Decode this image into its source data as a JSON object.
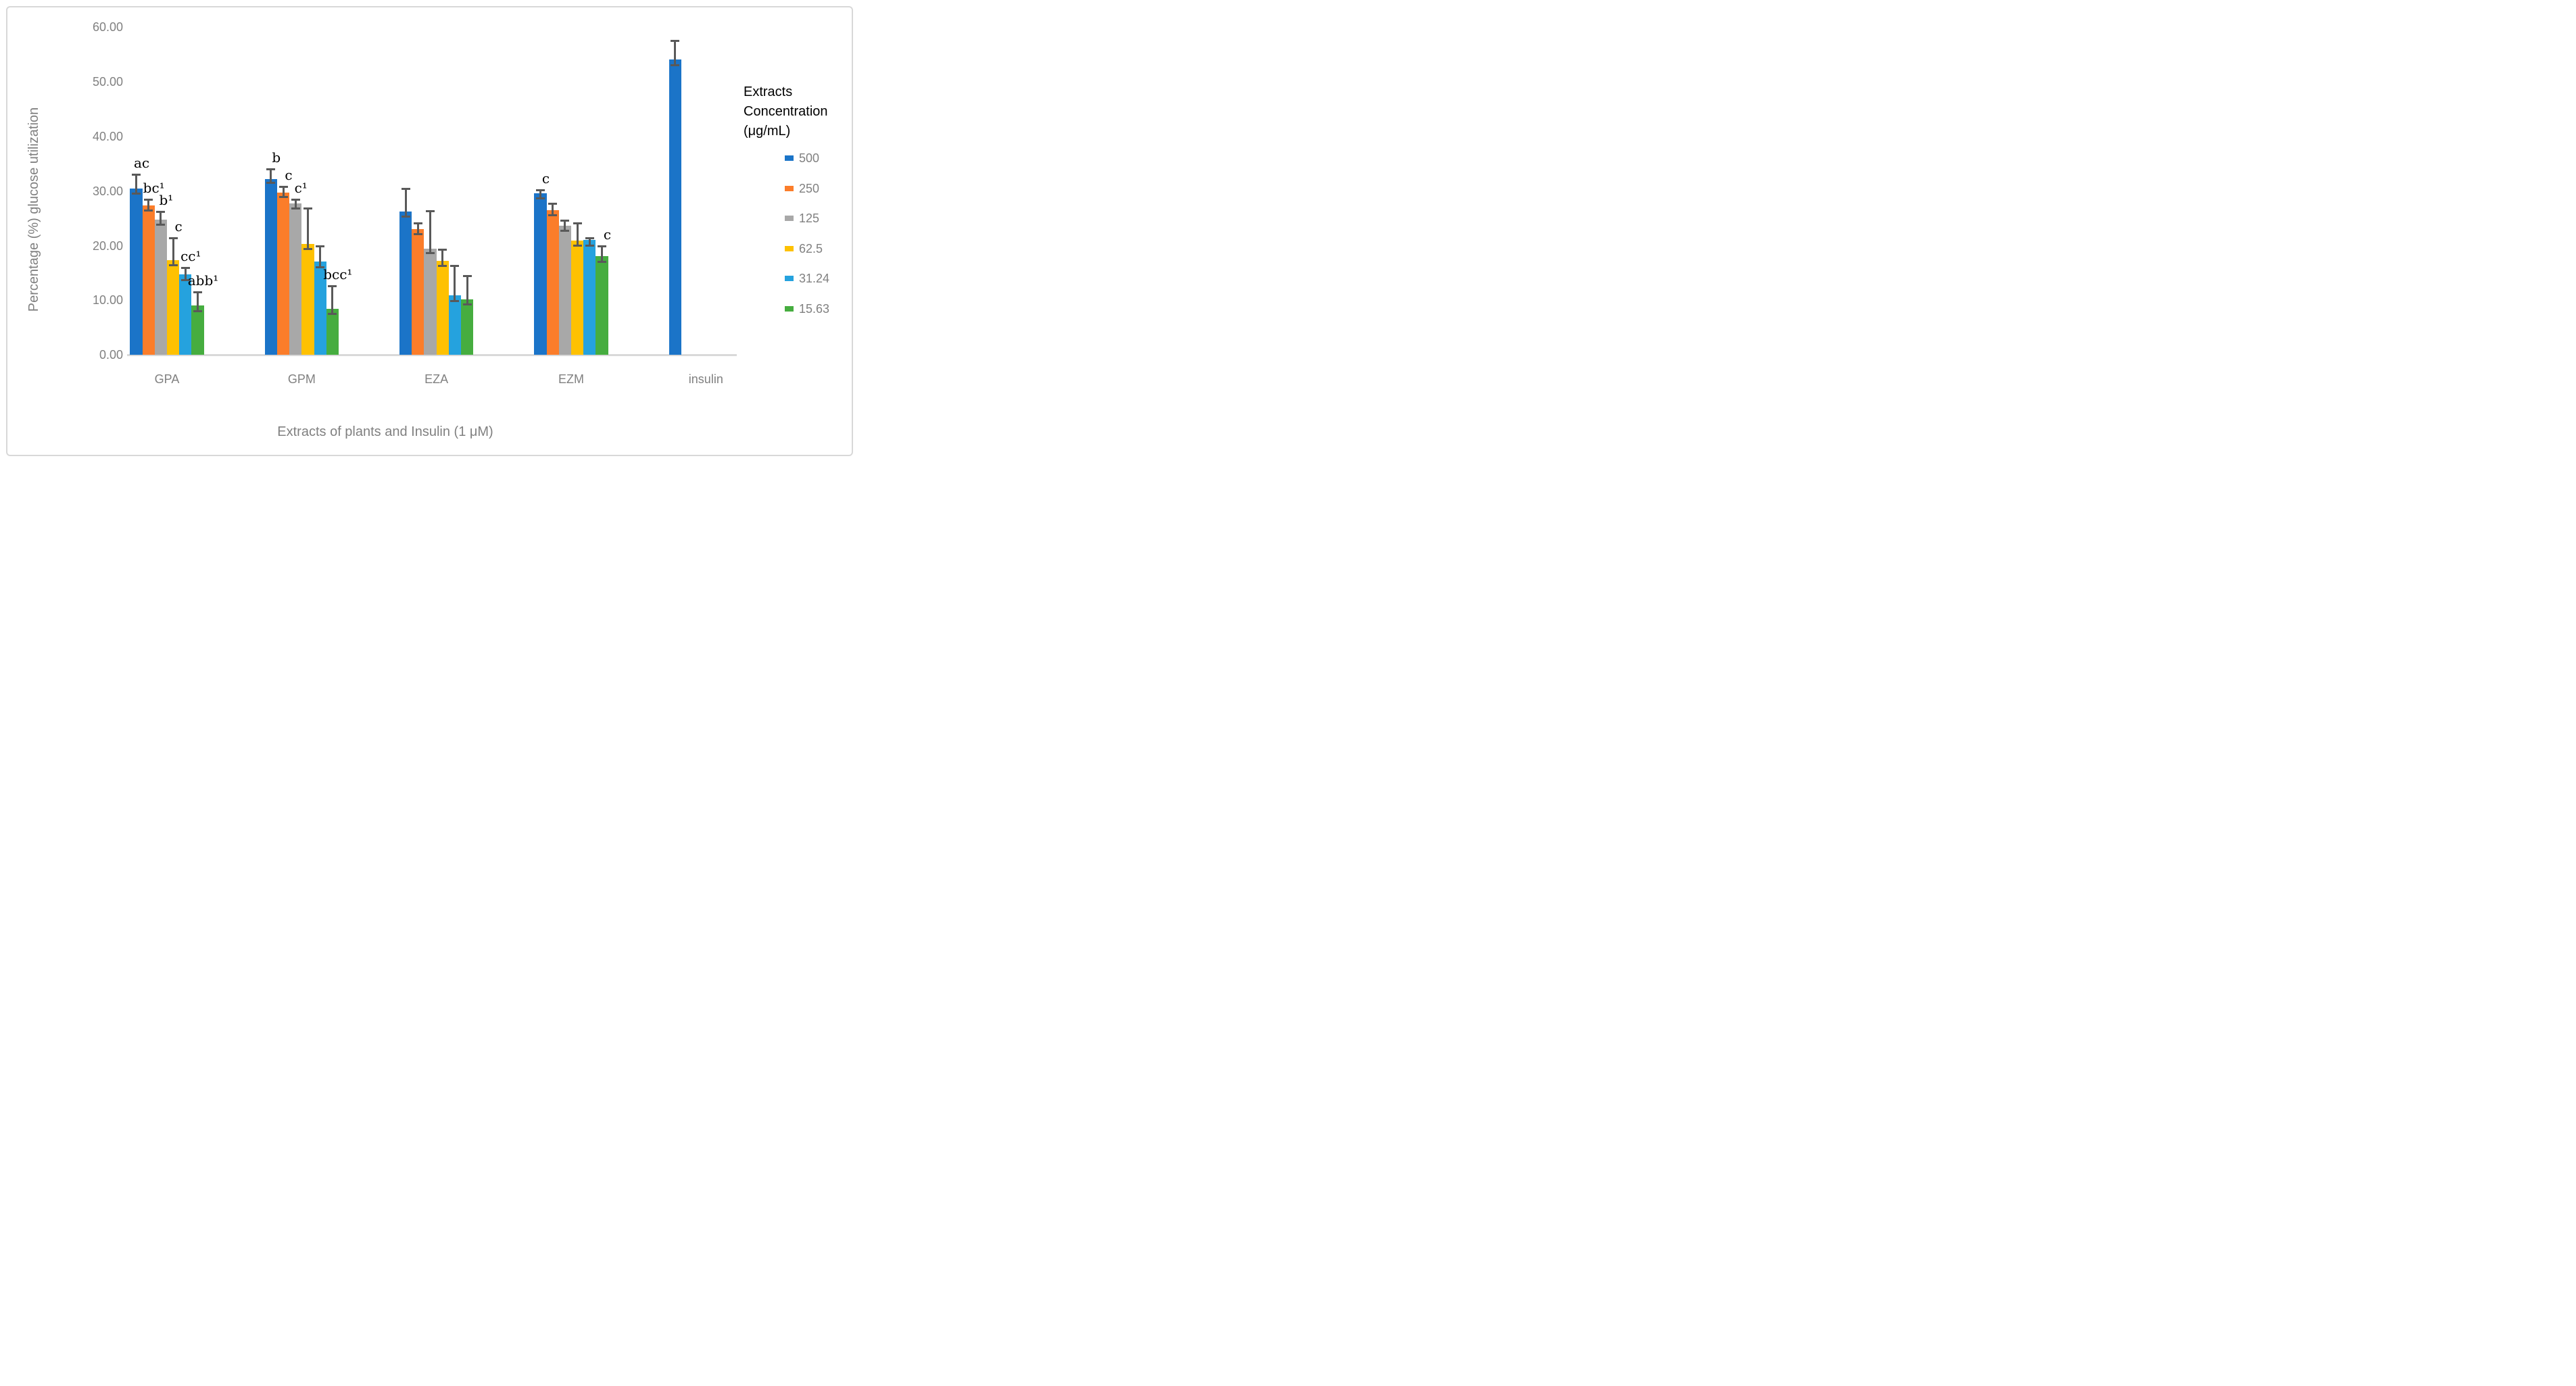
{
  "figure": {
    "background": "#FFFFFF",
    "border_color": "#D8D8D8"
  },
  "y_axis": {
    "title": "Percentage (%) glucose utilization",
    "tick_labels": [
      "0.00",
      "10.00",
      "20.00",
      "30.00",
      "40.00",
      "50.00",
      "60.00"
    ],
    "min": 0,
    "max": 60,
    "step": 10
  },
  "x_axis": {
    "title": "Extracts of plants and Insulin (1 μM)",
    "categories": [
      "GPA",
      "GPM",
      "EZA",
      "EZM",
      "insulin"
    ]
  },
  "legend": {
    "title": "Extracts\nConcentration\n(μg/mL)",
    "entries": [
      "500",
      "250",
      "125",
      "62.5",
      "31.24",
      "15.63"
    ]
  },
  "colors": {
    "error_bar": "#595959",
    "axis_line": "#D9D9D9",
    "text": "#808080",
    "annotation": "#000000"
  },
  "chart_data": {
    "type": "bar",
    "title": "",
    "xlabel": "Extracts of plants and Insulin (1 μM)",
    "ylabel": "Percentage (%) glucose utilization",
    "ylim": [
      0,
      60
    ],
    "grid": false,
    "legend_position": "right",
    "legend_title": "Extracts Concentration (μg/mL)",
    "categories": [
      "GPA",
      "GPM",
      "EZA",
      "EZM",
      "insulin"
    ],
    "series": [
      {
        "name": "500",
        "color": "#1B74C8",
        "values": [
          30.4,
          32.2,
          26.2,
          29.6,
          54.1
        ],
        "err_plus": [
          2.7,
          1.8,
          4.2,
          0.6,
          3.4
        ],
        "err_minus": [
          0.9,
          0.8,
          0.9,
          1.0,
          1.2
        ]
      },
      {
        "name": "250",
        "color": "#FB7D2A",
        "values": [
          27.4,
          29.7,
          23.0,
          26.5,
          null
        ],
        "err_plus": [
          1.1,
          1.1,
          1.1,
          1.2,
          null
        ],
        "err_minus": [
          1.0,
          0.9,
          1.0,
          1.0,
          null
        ]
      },
      {
        "name": "125",
        "color": "#A8A8A8",
        "values": [
          24.8,
          27.7,
          19.5,
          23.6,
          null
        ],
        "err_plus": [
          1.5,
          0.8,
          6.9,
          1.0,
          null
        ],
        "err_minus": [
          1.0,
          1.0,
          0.9,
          1.0,
          null
        ]
      },
      {
        "name": "62.5",
        "color": "#FEC101",
        "values": [
          17.3,
          20.3,
          17.2,
          20.9,
          null
        ],
        "err_plus": [
          4.1,
          6.6,
          2.1,
          3.2,
          null
        ],
        "err_minus": [
          0.9,
          1.0,
          1.0,
          1.0,
          null
        ]
      },
      {
        "name": "31.24",
        "color": "#25A2DE",
        "values": [
          14.8,
          17.1,
          10.9,
          21.1,
          null
        ],
        "err_plus": [
          1.2,
          2.8,
          5.5,
          0.3,
          null
        ],
        "err_minus": [
          1.2,
          1.1,
          1.1,
          1.1,
          null
        ]
      },
      {
        "name": "15.63",
        "color": "#46AD3F",
        "values": [
          9.0,
          8.5,
          10.2,
          18.1,
          null
        ],
        "err_plus": [
          2.5,
          4.1,
          4.3,
          1.8,
          null
        ],
        "err_minus": [
          1.0,
          1.1,
          1.0,
          1.1,
          null
        ]
      }
    ],
    "annotations": [
      {
        "category": "GPA",
        "series": "500",
        "text": "ac"
      },
      {
        "category": "GPA",
        "series": "250",
        "text": "bc¹"
      },
      {
        "category": "GPA",
        "series": "125",
        "text": "b¹"
      },
      {
        "category": "GPA",
        "series": "62.5",
        "text": "c"
      },
      {
        "category": "GPA",
        "series": "31.24",
        "text": "cc¹"
      },
      {
        "category": "GPA",
        "series": "15.63",
        "text": "abb¹"
      },
      {
        "category": "GPM",
        "series": "500",
        "text": "b"
      },
      {
        "category": "GPM",
        "series": "250",
        "text": "c"
      },
      {
        "category": "GPM",
        "series": "125",
        "text": "c¹"
      },
      {
        "category": "GPM",
        "series": "15.63",
        "text": "bcc¹"
      },
      {
        "category": "EZM",
        "series": "500",
        "text": "c"
      },
      {
        "category": "EZM",
        "series": "15.63",
        "text": "c"
      }
    ]
  }
}
